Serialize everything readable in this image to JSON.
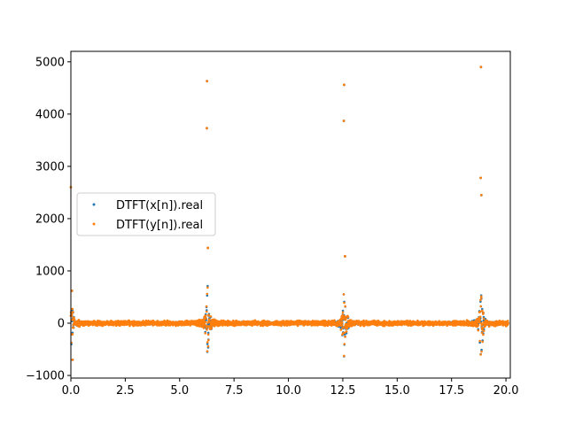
{
  "chart_data": {
    "type": "scatter",
    "title": "",
    "xlabel": "",
    "ylabel": "",
    "xlim": [
      0,
      20.2
    ],
    "ylim": [
      -1050,
      5200
    ],
    "x_ticks": [
      0.0,
      2.5,
      5.0,
      7.5,
      10.0,
      12.5,
      15.0,
      17.5,
      20.0
    ],
    "x_tick_labels": [
      "0.0",
      "2.5",
      "5.0",
      "7.5",
      "10.0",
      "12.5",
      "15.0",
      "17.5",
      "20.0"
    ],
    "y_ticks": [
      -1000,
      0,
      1000,
      2000,
      3000,
      4000,
      5000
    ],
    "y_tick_labels": [
      "−1000",
      "0",
      "1000",
      "2000",
      "3000",
      "4000",
      "5000"
    ],
    "grid": false,
    "legend_position": "center-left",
    "series": [
      {
        "name": "DTFT(x[n]).real",
        "color": "#1f77b4",
        "marker": "point",
        "points": [
          [
            0.0,
            2600
          ],
          [
            0.05,
            620
          ],
          [
            0.08,
            -700
          ],
          [
            6.25,
            3730
          ],
          [
            6.26,
            4630
          ],
          [
            6.3,
            1440
          ],
          [
            12.55,
            3870
          ],
          [
            12.56,
            4560
          ],
          [
            12.6,
            1280
          ],
          [
            18.84,
            2780
          ],
          [
            18.85,
            4900
          ],
          [
            18.87,
            2450
          ]
        ]
      },
      {
        "name": "DTFT(y[n]).real",
        "color": "#ff7f0e",
        "marker": "point",
        "points": [
          [
            0.0,
            2600
          ],
          [
            0.05,
            620
          ],
          [
            0.08,
            -700
          ],
          [
            6.25,
            3730
          ],
          [
            6.26,
            4630
          ],
          [
            6.3,
            1440
          ],
          [
            12.55,
            3870
          ],
          [
            12.56,
            4560
          ],
          [
            12.6,
            1280
          ],
          [
            18.84,
            2780
          ],
          [
            18.85,
            4900
          ],
          [
            18.87,
            2450
          ]
        ]
      }
    ],
    "noise_band": {
      "description_values": "dense band of points near 0 across x, amplitude growing near multiples of 2π",
      "centers": [
        0.0,
        6.283,
        12.566,
        18.85
      ],
      "peak_amplitude": 800
    }
  }
}
